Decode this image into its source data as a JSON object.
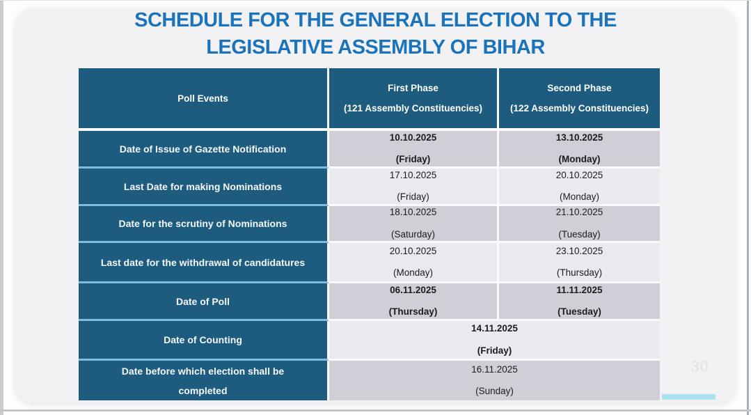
{
  "title": {
    "line1": "SCHEDULE FOR THE GENERAL ELECTION TO THE",
    "line2": "LEGISLATIVE ASSEMBLY OF BIHAR"
  },
  "table": {
    "header": {
      "col1": "Poll Events",
      "col2_line1": "First Phase",
      "col2_line2": "(121 Assembly Constituencies)",
      "col3_line1": "Second Phase",
      "col3_line2": "(122 Assembly Constituencies)"
    },
    "rows": [
      {
        "event": "Date of Issue of Gazette Notification",
        "phase1_date": "10.10.2025",
        "phase1_day": "(Friday)",
        "phase2_date": "13.10.2025",
        "phase2_day": "(Monday)"
      },
      {
        "event": "Last Date for making Nominations",
        "phase1_date": "17.10.2025",
        "phase1_day": "(Friday)",
        "phase2_date": "20.10.2025",
        "phase2_day": "(Monday)"
      },
      {
        "event": "Date for the scrutiny of Nominations",
        "phase1_date": "18.10.2025",
        "phase1_day": "(Saturday)",
        "phase2_date": "21.10.2025",
        "phase2_day": "(Tuesday)"
      },
      {
        "event": "Last date for the withdrawal of candidatures",
        "phase1_date": "20.10.2025",
        "phase1_day": "(Monday)",
        "phase2_date": "23.10.2025",
        "phase2_day": "(Thursday)"
      },
      {
        "event": "Date of Poll",
        "phase1_date": "06.11.2025",
        "phase1_day": "(Thursday)",
        "phase2_date": "11.11.2025",
        "phase2_day": "(Tuesday)"
      },
      {
        "event": "Date of Counting",
        "merged_date": "14.11.2025",
        "merged_day": "(Friday)"
      },
      {
        "event": "Date before which election shall be completed",
        "merged_date": "16.11.2025",
        "merged_day": "(Sunday)"
      }
    ]
  },
  "footer": {
    "page_number": "30"
  },
  "colors": {
    "title_blue": "#1a73bb",
    "table_teal": "#1d5c7e",
    "row_dark": "#cfcfd8",
    "row_light": "#e9e9ef",
    "teal_separator": "#7fbeda",
    "accent_cyan": "#ace3ee"
  }
}
